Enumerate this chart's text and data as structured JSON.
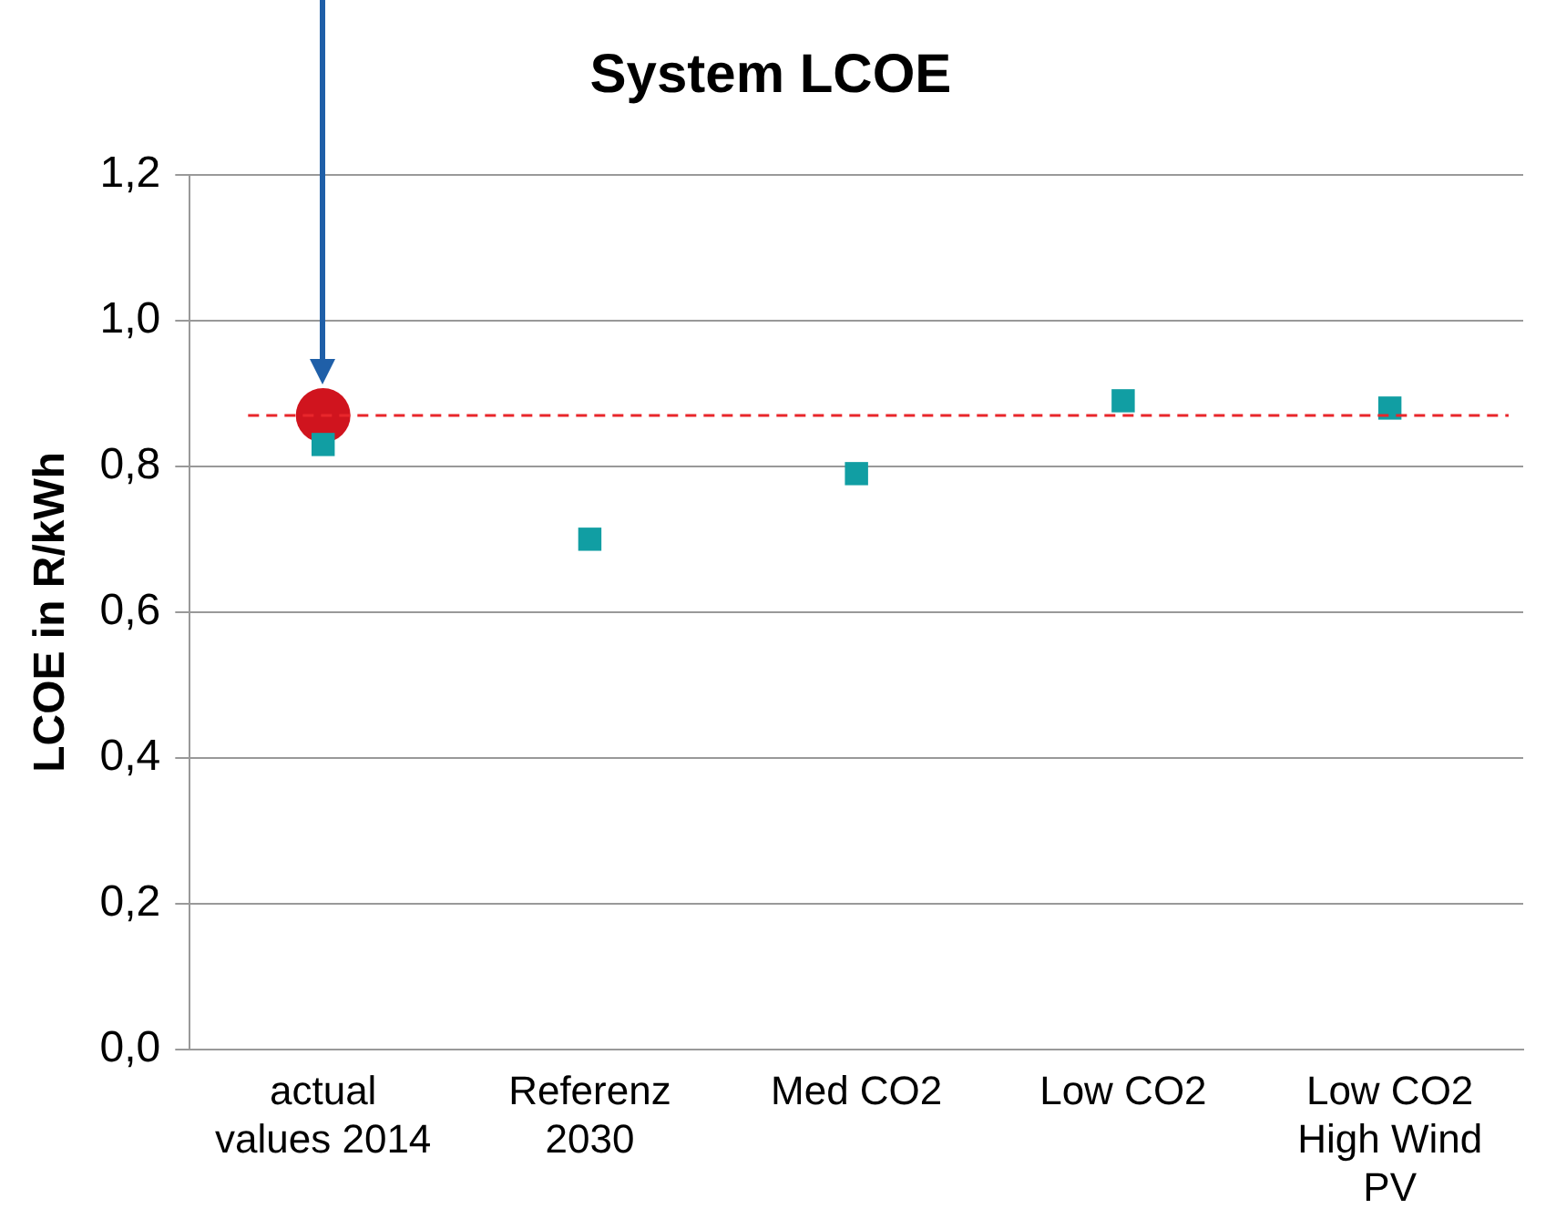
{
  "chart_data": {
    "type": "scatter",
    "title": "System LCOE",
    "ylabel": "LCOE in R/kWh",
    "categories": [
      "actual values 2014",
      "Referenz 2030",
      "Med CO2",
      "Low CO2",
      "Low CO2 High  Wind PV"
    ],
    "series": [
      {
        "type": "scatter",
        "color": "#119ea3",
        "marker": "square",
        "values": [
          0.83,
          0.7,
          0.79,
          0.89,
          0.88
        ]
      },
      {
        "type": "scatter",
        "color": "#d0141e",
        "marker": "circle",
        "x": [
          "actual values 2014"
        ],
        "values": [
          0.87
        ]
      }
    ],
    "ref_lines": [
      {
        "axis": "y",
        "value": 0.87,
        "color": "#e8262b",
        "line_style": "dashed"
      }
    ],
    "ylim": [
      0,
      1.2
    ],
    "yticks": [
      {
        "value": 0,
        "label": "0,0"
      },
      {
        "value": 0.2,
        "label": "0,2"
      },
      {
        "value": 0.4,
        "label": "0,4"
      },
      {
        "value": 0.6,
        "label": "0,6"
      },
      {
        "value": 0.8,
        "label": "0,8"
      },
      {
        "value": 1,
        "label": "1,0"
      },
      {
        "value": 1.2,
        "label": "1,2"
      }
    ],
    "grid": "y",
    "legend": false
  }
}
